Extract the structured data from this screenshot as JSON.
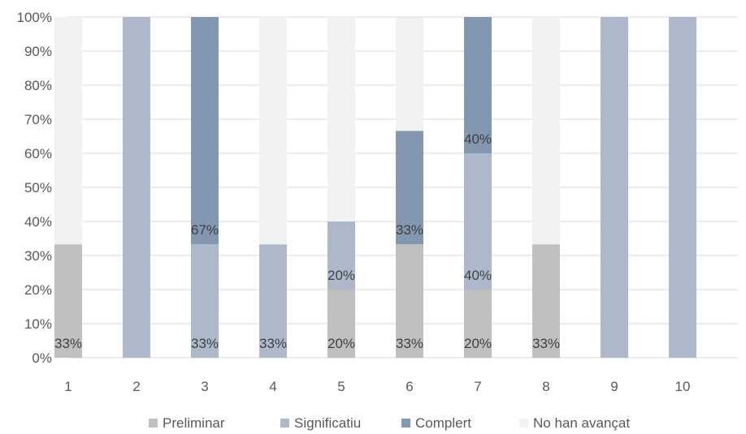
{
  "chart_data": {
    "type": "bar",
    "stacked": true,
    "categories": [
      "1",
      "2",
      "3",
      "4",
      "5",
      "6",
      "7",
      "8",
      "9",
      "10"
    ],
    "ylim": [
      0,
      100
    ],
    "y_ticks": [
      "0%",
      "10%",
      "20%",
      "30%",
      "40%",
      "50%",
      "60%",
      "70%",
      "80%",
      "90%",
      "100%"
    ],
    "grid": true,
    "legend_position": "bottom",
    "series": [
      {
        "name": "Preliminar",
        "color": "#bfbfbf",
        "values": [
          33.3,
          0,
          0,
          0,
          20,
          33.3,
          20,
          33.3,
          0,
          0
        ],
        "labels": [
          "33%",
          "",
          "",
          "",
          "20%",
          "33%",
          "20%",
          "33%",
          "",
          ""
        ]
      },
      {
        "name": "Significatiu",
        "color": "#adb9ca",
        "values": [
          0,
          100,
          33.3,
          33.3,
          20,
          0,
          40,
          0,
          100,
          100
        ],
        "labels": [
          "",
          "",
          "33%",
          "33%",
          "20%",
          "",
          "40%",
          "",
          "",
          ""
        ]
      },
      {
        "name": "Complert",
        "color": "#8497b0",
        "values": [
          0,
          0,
          66.7,
          0,
          0,
          33.3,
          40,
          0,
          0,
          0
        ],
        "labels": [
          "",
          "",
          "67%",
          "",
          "",
          "33%",
          "40%",
          "",
          "",
          ""
        ]
      },
      {
        "name": "No han avançat",
        "color": "#f2f2f2",
        "values": [
          66.7,
          0,
          0,
          66.7,
          60,
          33.3,
          0,
          66.7,
          0,
          0
        ],
        "labels": [
          "",
          "",
          "",
          "",
          "",
          "",
          "",
          "",
          "",
          ""
        ]
      }
    ]
  }
}
